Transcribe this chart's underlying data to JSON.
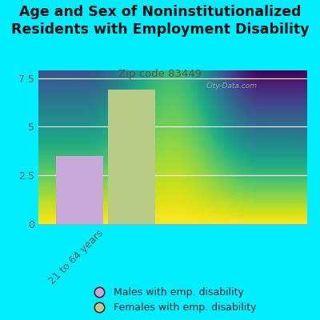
{
  "title": "Age and Sex of Noninstitutionalized\nResidents with Employment Disability",
  "subtitle": "Zip code 83449",
  "background_color": "#00eeff",
  "plot_bg_color_top": "#e8f5e0",
  "plot_bg_color_bottom": "#f8fff8",
  "categories": [
    "21 to 64 years"
  ],
  "male_values": [
    3.5
  ],
  "female_values": [
    6.9
  ],
  "male_color": "#c8a8d8",
  "female_color": "#b8cc88",
  "ylim": [
    0,
    7.9
  ],
  "yticks": [
    0,
    2.5,
    5,
    7.5
  ],
  "legend_male": "Males with emp. disability",
  "legend_female": "Females with emp. disability",
  "bar_width": 0.35,
  "title_fontsize": 12.5,
  "subtitle_fontsize": 9.5,
  "tick_fontsize": 9,
  "legend_fontsize": 9,
  "watermark": "City-Data.com"
}
